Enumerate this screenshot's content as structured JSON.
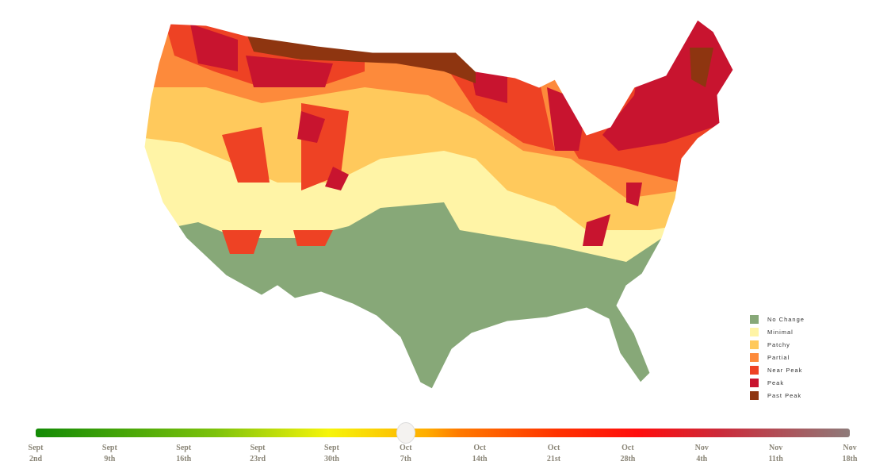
{
  "legend": [
    {
      "label": "No Change",
      "color": "#87a878"
    },
    {
      "label": "Minimal",
      "color": "#fff4a6"
    },
    {
      "label": "Patchy",
      "color": "#ffc95c"
    },
    {
      "label": "Partial",
      "color": "#fd8a3b"
    },
    {
      "label": "Near Peak",
      "color": "#ee4224"
    },
    {
      "label": "Peak",
      "color": "#c8142f"
    },
    {
      "label": "Past Peak",
      "color": "#8e3510"
    }
  ],
  "slider": {
    "selected_index": 5,
    "ticks": [
      {
        "month": "Sept",
        "day": "2nd"
      },
      {
        "month": "Sept",
        "day": "9th"
      },
      {
        "month": "Sept",
        "day": "16th"
      },
      {
        "month": "Sept",
        "day": "23rd"
      },
      {
        "month": "Sept",
        "day": "30th"
      },
      {
        "month": "Oct",
        "day": "7th"
      },
      {
        "month": "Oct",
        "day": "14th"
      },
      {
        "month": "Oct",
        "day": "21st"
      },
      {
        "month": "Oct",
        "day": "28th"
      },
      {
        "month": "Nov",
        "day": "4th"
      },
      {
        "month": "Nov",
        "day": "11th"
      },
      {
        "month": "Nov",
        "day": "18th"
      }
    ]
  }
}
